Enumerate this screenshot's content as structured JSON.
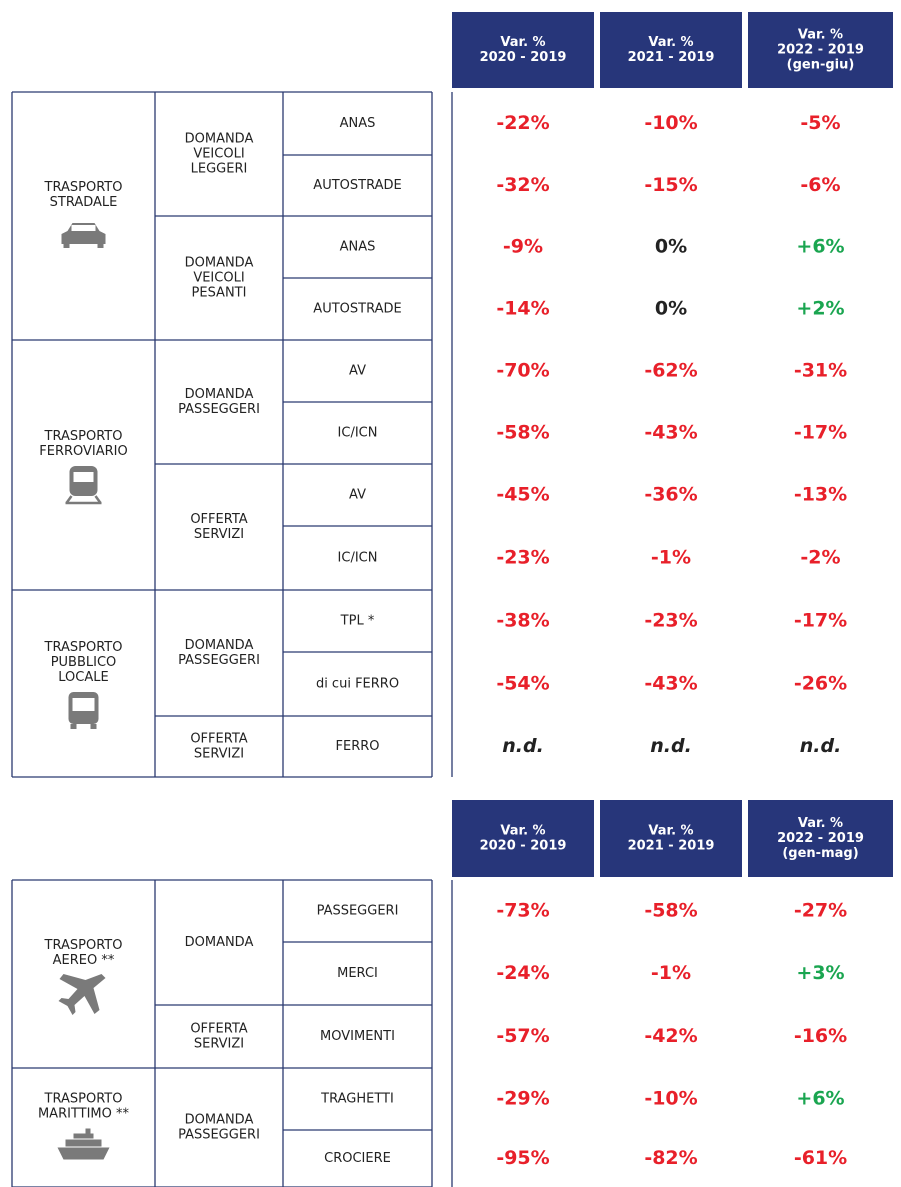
{
  "tables": [
    {
      "headers": [
        [
          "Var. %",
          "2020 - 2019"
        ],
        [
          "Var. %",
          "2021 - 2019"
        ],
        [
          "Var. %",
          "2022 - 2019",
          "(gen-giu)"
        ]
      ],
      "groups": [
        {
          "label": [
            "TRASPORTO",
            "STRADALE"
          ],
          "subgroups": [
            {
              "label": [
                "DOMANDA",
                "VEICOLI",
                "LEGGERI"
              ],
              "rows": [
                {
                  "label": "ANAS",
                  "values": [
                    "-22%",
                    "-10%",
                    "-5%"
                  ]
                },
                {
                  "label": "AUTOSTRADE",
                  "values": [
                    "-32%",
                    "-15%",
                    "-6%"
                  ]
                }
              ]
            },
            {
              "label": [
                "DOMANDA",
                "VEICOLI",
                "PESANTI"
              ],
              "rows": [
                {
                  "label": "ANAS",
                  "values": [
                    "-9%",
                    "0%",
                    "+6%"
                  ]
                },
                {
                  "label": "AUTOSTRADE",
                  "values": [
                    "-14%",
                    "0%",
                    "+2%"
                  ]
                }
              ]
            }
          ]
        },
        {
          "label": [
            "TRASPORTO",
            "FERROVIARIO"
          ],
          "subgroups": [
            {
              "label": [
                "DOMANDA",
                "PASSEGGERI"
              ],
              "rows": [
                {
                  "label": "AV",
                  "values": [
                    "-70%",
                    "-62%",
                    "-31%"
                  ]
                },
                {
                  "label": "IC/ICN",
                  "values": [
                    "-58%",
                    "-43%",
                    "-17%"
                  ]
                }
              ]
            },
            {
              "label": [
                "OFFERTA",
                "SERVIZI"
              ],
              "rows": [
                {
                  "label": "AV",
                  "values": [
                    "-45%",
                    "-36%",
                    "-13%"
                  ]
                },
                {
                  "label": "IC/ICN",
                  "values": [
                    "-23%",
                    "-1%",
                    "-2%"
                  ]
                }
              ]
            }
          ]
        },
        {
          "label": [
            "TRASPORTO",
            "PUBBLICO",
            "LOCALE"
          ],
          "subgroups": [
            {
              "label": [
                "DOMANDA",
                "PASSEGGERI"
              ],
              "rows": [
                {
                  "label": "TPL *",
                  "values": [
                    "-38%",
                    "-23%",
                    "-17%"
                  ]
                },
                {
                  "label": "di cui FERRO",
                  "values": [
                    "-54%",
                    "-43%",
                    "-26%"
                  ]
                }
              ]
            },
            {
              "label": [
                "OFFERTA",
                "SERVIZI"
              ],
              "rows": [
                {
                  "label": "FERRO",
                  "values": [
                    "n.d.",
                    "n.d.",
                    "n.d."
                  ]
                }
              ]
            }
          ]
        }
      ]
    },
    {
      "headers": [
        [
          "Var. %",
          "2020 - 2019"
        ],
        [
          "Var. %",
          "2021 - 2019"
        ],
        [
          "Var. %",
          "2022 - 2019",
          "(gen-mag)"
        ]
      ],
      "groups": [
        {
          "label": [
            "TRASPORTO",
            "AEREO **"
          ],
          "subgroups": [
            {
              "label": [
                "DOMANDA"
              ],
              "rows": [
                {
                  "label": "PASSEGGERI",
                  "values": [
                    "-73%",
                    "-58%",
                    "-27%"
                  ]
                },
                {
                  "label": "MERCI",
                  "values": [
                    "-24%",
                    "-1%",
                    "+3%"
                  ]
                }
              ]
            },
            {
              "label": [
                "OFFERTA",
                "SERVIZI"
              ],
              "rows": [
                {
                  "label": "MOVIMENTI",
                  "values": [
                    "-57%",
                    "-42%",
                    "-16%"
                  ]
                }
              ]
            }
          ]
        },
        {
          "label": [
            "TRASPORTO",
            "MARITTIMO **"
          ],
          "subgroups": [
            {
              "label": [
                "DOMANDA",
                "PASSEGGERI"
              ],
              "rows": [
                {
                  "label": "TRAGHETTI",
                  "values": [
                    "-29%",
                    "-10%",
                    "+6%"
                  ]
                },
                {
                  "label": "CROCIERE",
                  "values": [
                    "-95%",
                    "-82%",
                    "-61%"
                  ]
                }
              ]
            }
          ]
        }
      ]
    }
  ]
}
